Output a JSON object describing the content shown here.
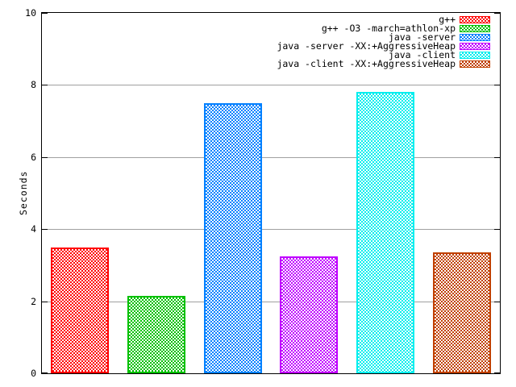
{
  "chart_data": {
    "type": "bar",
    "title": "",
    "xlabel": "",
    "ylabel": "Seconds",
    "ylim": [
      0,
      10
    ],
    "yticks": [
      0,
      2,
      4,
      6,
      8,
      10
    ],
    "grid": true,
    "grid_color": "#a0a0a0",
    "axis_color": "#000000",
    "background_color": "#ffffff",
    "fill_style": "checkerboard",
    "legend_position": "top-right-inside",
    "series": [
      {
        "name": "g++",
        "value": 3.5,
        "color": "#ff0000"
      },
      {
        "name": "g++ -O3 -march=athlon-xp",
        "value": 2.15,
        "color": "#00c000"
      },
      {
        "name": "java -server",
        "value": 7.5,
        "color": "#0080ff"
      },
      {
        "name": "java -server -XX:+AggressiveHeap",
        "value": 3.25,
        "color": "#c000ff"
      },
      {
        "name": "java -client",
        "value": 7.8,
        "color": "#00eeee"
      },
      {
        "name": "java -client -XX:+AggressiveHeap",
        "value": 3.35,
        "color": "#c04000"
      }
    ]
  }
}
